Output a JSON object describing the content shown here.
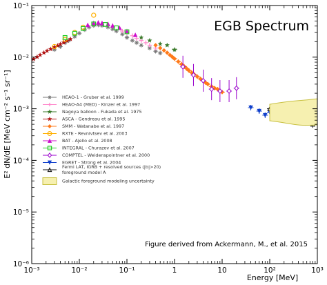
{
  "chart_data": {
    "type": "scatter",
    "title": "EGB Spectrum",
    "xlabel": "Energy [MeV]",
    "ylabel": "E² dN/dE [MeV cm⁻² s⁻¹ sr⁻¹]",
    "x_scale": "log",
    "y_scale": "log",
    "xlim": [
      0.001,
      1000
    ],
    "ylim": [
      1e-06,
      0.1
    ],
    "x_ticks": [
      "10⁻³",
      "10⁻²",
      "10⁻¹",
      "1",
      "10",
      "10²",
      "10³"
    ],
    "y_ticks": [
      "10⁻⁶",
      "10⁻⁵",
      "10⁻⁴",
      "10⁻³",
      "10⁻²",
      "10⁻¹"
    ],
    "x_tick_values": [
      0.001,
      0.01,
      0.1,
      1,
      10,
      100,
      1000
    ],
    "y_tick_values": [
      1e-06,
      1e-05,
      0.0001,
      0.001,
      0.01,
      0.1
    ],
    "annotation": "Figure derived from Ackermann, M., et al. 2015",
    "legend_position": "lower-left",
    "series": [
      {
        "name": "HEAO-1 - Gruber et al. 1999",
        "color": "#777777",
        "marker": "asterisk",
        "x": [
          0.003,
          0.004,
          0.005,
          0.006,
          0.008,
          0.01,
          0.013,
          0.016,
          0.02,
          0.025,
          0.03,
          0.04,
          0.05,
          0.06,
          0.08,
          0.1,
          0.13,
          0.16,
          0.2,
          0.3,
          0.4,
          0.5
        ],
        "y": [
          0.014,
          0.016,
          0.019,
          0.021,
          0.025,
          0.029,
          0.034,
          0.038,
          0.041,
          0.042,
          0.041,
          0.038,
          0.035,
          0.032,
          0.028,
          0.024,
          0.021,
          0.019,
          0.017,
          0.015,
          0.013,
          0.012
        ]
      },
      {
        "name": "HEAO-A4 (MED) - Kinzer et al. 1997",
        "color": "#ff88cc",
        "marker": "plus",
        "x": [
          0.08,
          0.1,
          0.13,
          0.16,
          0.2,
          0.25,
          0.3,
          0.4
        ],
        "y": [
          0.032,
          0.029,
          0.026,
          0.023,
          0.021,
          0.019,
          0.017,
          0.015
        ]
      },
      {
        "name": "Nagoya balloon - Fukada et al. 1975",
        "color": "#3a7a2a",
        "marker": "star",
        "x": [
          0.2,
          0.3,
          0.5,
          0.7,
          1.0
        ],
        "y": [
          0.024,
          0.021,
          0.018,
          0.017,
          0.014
        ]
      },
      {
        "name": "ASCA - Gendreau et al. 1995",
        "color": "#b01010",
        "marker": "star",
        "x": [
          0.0011,
          0.0013,
          0.0015,
          0.0018,
          0.0021,
          0.0025,
          0.003,
          0.0035,
          0.004,
          0.0047,
          0.0055,
          0.0065
        ],
        "y": [
          0.0092,
          0.0101,
          0.011,
          0.0122,
          0.0132,
          0.0143,
          0.0156,
          0.0167,
          0.0178,
          0.0192,
          0.0207,
          0.0224
        ]
      },
      {
        "name": "SMM - Watanabe et al. 1997",
        "color": "#ff7a1a",
        "marker": "diamond",
        "x": [
          0.4,
          0.5,
          0.6,
          0.7,
          0.8,
          0.9,
          1.0,
          1.2,
          1.4,
          1.6,
          1.8,
          2.0,
          2.3,
          2.6,
          3.0,
          3.5,
          4.0,
          4.5,
          5.0,
          6.0,
          7.0,
          8.0,
          9.0,
          10.0
        ],
        "y": [
          0.017,
          0.015,
          0.0135,
          0.0122,
          0.011,
          0.0101,
          0.0093,
          0.0082,
          0.0073,
          0.0066,
          0.006,
          0.0055,
          0.005,
          0.0046,
          0.0042,
          0.0038,
          0.0035,
          0.0032,
          0.003,
          0.0027,
          0.0025,
          0.0024,
          0.0022,
          0.0021
        ]
      },
      {
        "name": "RXTE - Revnivtsev et al. 2003",
        "color": "#ffb000",
        "marker": "circle",
        "x": [
          0.003,
          0.005,
          0.008,
          0.012,
          0.02
        ],
        "y": [
          0.016,
          0.022,
          0.03,
          0.038,
          0.065
        ]
      },
      {
        "name": "BAT - Ajello et al. 2008",
        "color": "#cc10cc",
        "marker": "triangle-up",
        "x": [
          0.015,
          0.02,
          0.025,
          0.03,
          0.04,
          0.05,
          0.07,
          0.1,
          0.15
        ],
        "y": [
          0.042,
          0.046,
          0.047,
          0.046,
          0.044,
          0.041,
          0.037,
          0.032,
          0.027
        ]
      },
      {
        "name": "INTEGRAL - Churazov et al. 2007",
        "color": "#22cc22",
        "marker": "square",
        "x": [
          0.005,
          0.008,
          0.012,
          0.02,
          0.035,
          0.06,
          0.1
        ],
        "y": [
          0.024,
          0.029,
          0.036,
          0.044,
          0.043,
          0.037,
          0.031
        ]
      },
      {
        "name": "COMPTEL - Weidenspointner et al. 2000",
        "color": "#9900cc",
        "marker": "diamond-open",
        "x": [
          1.5,
          2.5,
          4.0,
          6.0,
          9.0,
          14.0,
          20.0
        ],
        "y": [
          0.0065,
          0.0045,
          0.0035,
          0.0024,
          0.0022,
          0.0022,
          0.0025
        ]
      },
      {
        "name": "EGRET - Strong et al. 2004",
        "color": "#1040cc",
        "marker": "triangle-down",
        "x": [
          40.0,
          60.0,
          80.0,
          100.0,
          150.0
        ],
        "y": [
          0.00105,
          0.0009,
          0.00075,
          0.00085,
          0.0011
        ]
      },
      {
        "name": "Fermi LAT, IGRB + resolved sources (|b|>20) foreground model A",
        "color": "#111111",
        "marker": "triangle-open",
        "x": [
          100.0,
          140.0,
          200.0,
          280.0,
          400.0,
          560.0,
          800.0
        ],
        "y": [
          0.001,
          0.0008,
          0.0007,
          0.00065,
          0.0006,
          0.00055,
          0.0005
        ]
      },
      {
        "name": "Galactic foreground modeling uncertainty",
        "color": "#c8c040",
        "marker": "band",
        "x": [
          100,
          1000
        ],
        "y": [
          0.00055,
          0.0013
        ]
      }
    ]
  }
}
